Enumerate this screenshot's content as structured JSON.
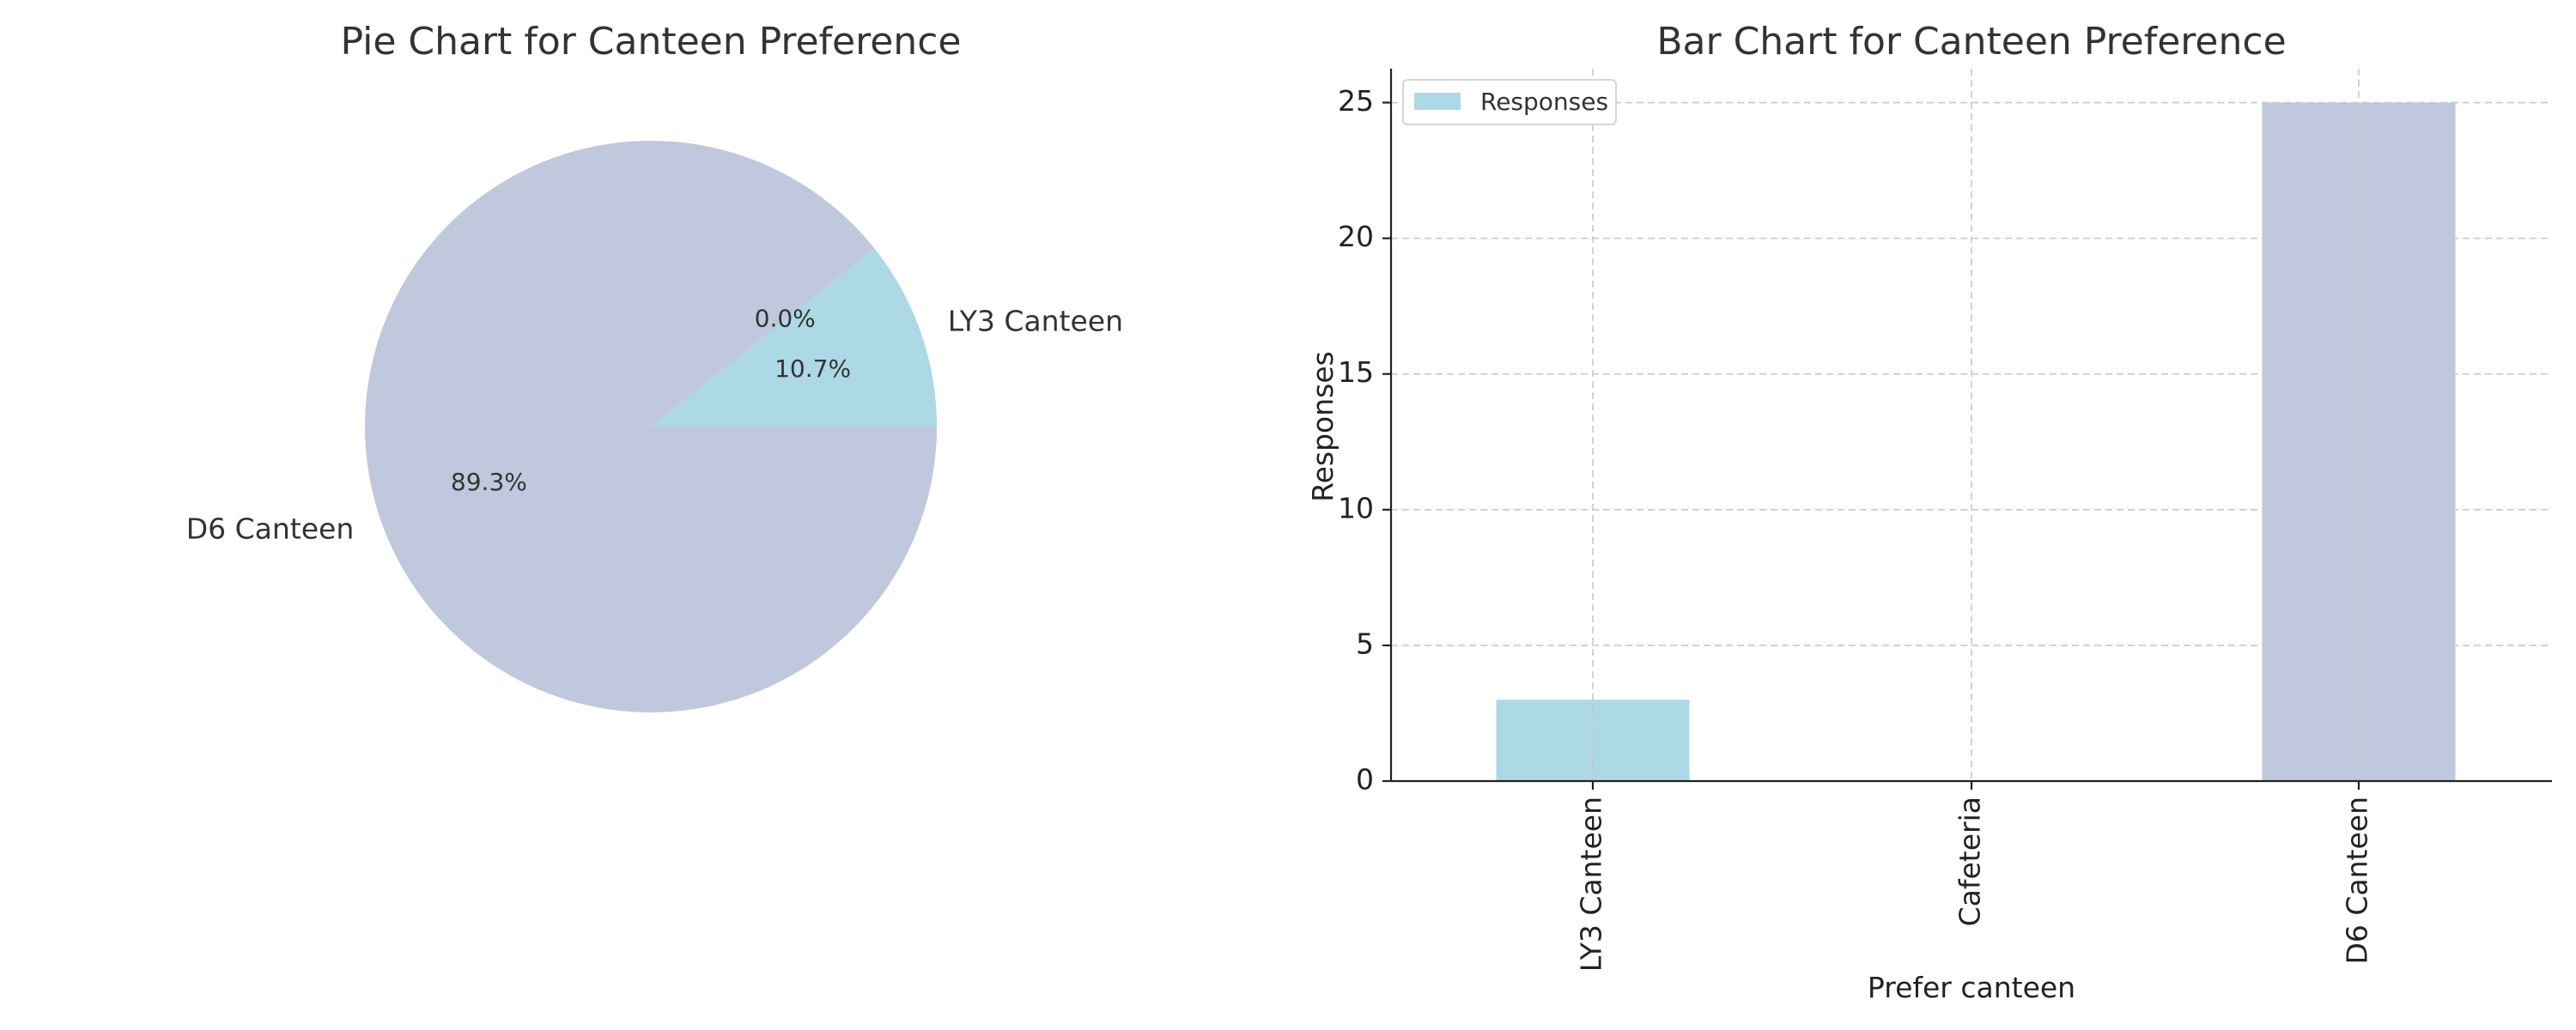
{
  "chart_data": [
    {
      "type": "pie",
      "title": "Pie Chart for Canteen Preference",
      "categories": [
        "LY3 Canteen",
        "Cafeteria",
        "D6 Canteen"
      ],
      "values": [
        3,
        0,
        25
      ],
      "percent_labels": [
        "10.7%",
        "0.0%",
        "89.3%"
      ],
      "colors": [
        "#add8e6",
        "#b3d9c0",
        "#c0c8dd"
      ],
      "slice_labels_shown": [
        "LY3 Canteen",
        "",
        "D6 Canteen"
      ],
      "start_angle": 0,
      "direction": "counterclockwise"
    },
    {
      "type": "bar",
      "title": "Bar Chart for Canteen Preference",
      "categories": [
        "LY3 Canteen",
        "Cafeteria",
        "D6 Canteen"
      ],
      "series": [
        {
          "name": "Responses",
          "values": [
            3,
            0,
            25
          ]
        }
      ],
      "colors": [
        "#add8e6",
        "#b3d9c0",
        "#c0c8dd"
      ],
      "xlabel": "Prefer canteen",
      "ylabel": "Responses",
      "ylim": [
        0,
        26.25
      ],
      "yticks": [
        0,
        5,
        10,
        15,
        20,
        25
      ],
      "grid": true,
      "legend_placement": "top-left",
      "legend_color": "#add8e6"
    }
  ]
}
